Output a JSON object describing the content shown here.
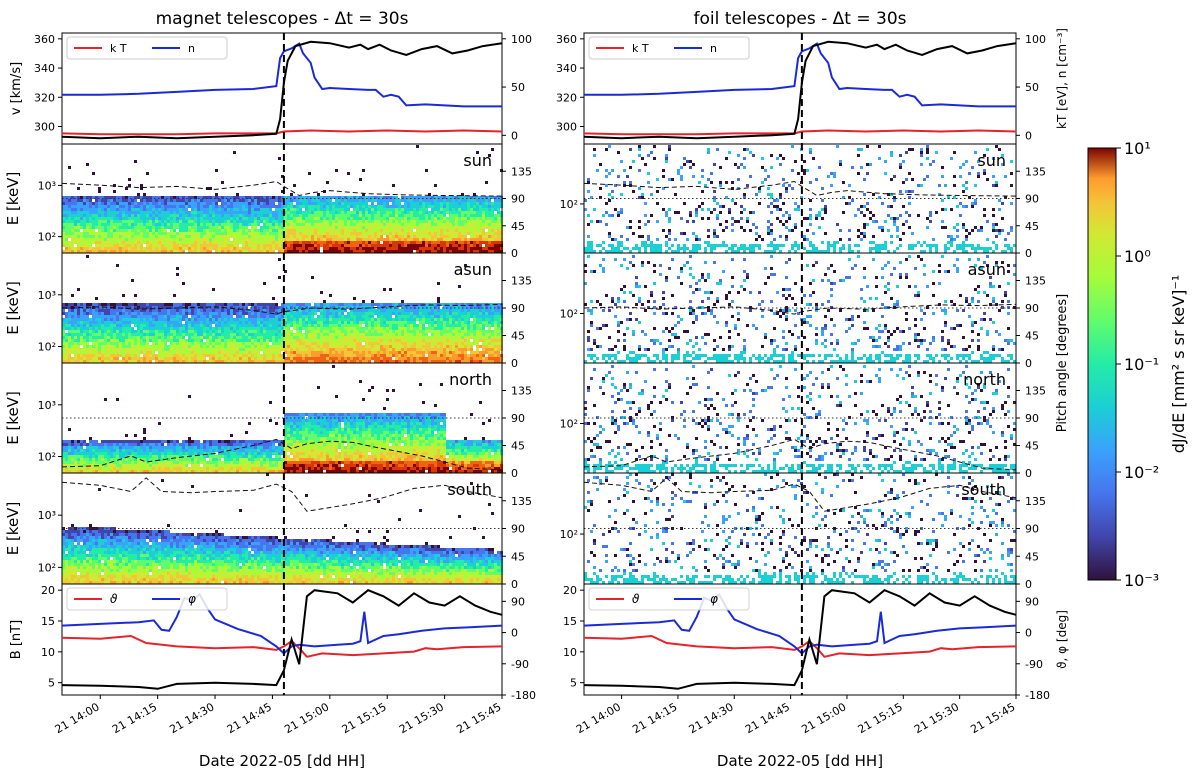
{
  "colors": {
    "kT": "#e6222a",
    "n": "#1a2ad9",
    "v": "#000000",
    "theta": "#e6222a",
    "phi": "#1a2ad9",
    "B": "#000000"
  },
  "chart_data": {
    "type": "heatmap",
    "columns": [
      {
        "title": "magnet telescopes  -  Δt = 30s",
        "telescope": "magnet",
        "xlabel": "Date 2022-05 [dd HH]"
      },
      {
        "title": "foil telescopes  -  Δt = 30s",
        "telescope": "foil",
        "xlabel": "Date 2022-05 [dd HH]"
      }
    ],
    "time_range_min": [
      -10,
      105
    ],
    "event_time_min": 48,
    "x_ticks": [
      "21 14:00",
      "21 14:15",
      "21 14:30",
      "21 14:45",
      "21 15:00",
      "21 15:15",
      "21 15:30",
      "21 15:45"
    ],
    "x_tick_minutes": [
      0,
      15,
      30,
      45,
      60,
      75,
      90,
      105
    ],
    "plasma_panel": {
      "ylabel_left": "v [km/s]",
      "ylabel_right": "kT [eV], n [cm⁻³]",
      "left_ticks": [
        "300",
        "320",
        "340",
        "360"
      ],
      "left_tick_values": [
        300,
        320,
        340,
        360
      ],
      "left_range": [
        288,
        364
      ],
      "right_ticks": [
        "0",
        "50",
        "100"
      ],
      "right_tick_values": [
        0,
        50,
        100
      ],
      "right_range": [
        -9,
        106
      ],
      "legend": [
        "k T",
        "n"
      ],
      "series_v_kms": [
        [
          -10,
          293
        ],
        [
          0,
          292
        ],
        [
          10,
          293
        ],
        [
          20,
          292
        ],
        [
          30,
          293
        ],
        [
          40,
          294
        ],
        [
          46,
          295
        ],
        [
          47,
          305
        ],
        [
          48,
          330
        ],
        [
          49,
          345
        ],
        [
          51,
          355
        ],
        [
          55,
          358
        ],
        [
          60,
          357
        ],
        [
          65,
          354
        ],
        [
          68,
          356
        ],
        [
          70,
          353
        ],
        [
          73,
          356
        ],
        [
          76,
          352
        ],
        [
          80,
          349
        ],
        [
          84,
          353
        ],
        [
          88,
          355
        ],
        [
          92,
          350
        ],
        [
          96,
          352
        ],
        [
          100,
          355
        ],
        [
          105,
          357
        ]
      ],
      "series_n_cm3": [
        [
          -10,
          42
        ],
        [
          0,
          42
        ],
        [
          10,
          43
        ],
        [
          20,
          45
        ],
        [
          30,
          47
        ],
        [
          40,
          48
        ],
        [
          46,
          51
        ],
        [
          47,
          80
        ],
        [
          48,
          87
        ],
        [
          50,
          90
        ],
        [
          52,
          95
        ],
        [
          53,
          85
        ],
        [
          55,
          75
        ],
        [
          56,
          60
        ],
        [
          58,
          48
        ],
        [
          60,
          49
        ],
        [
          65,
          48
        ],
        [
          70,
          47
        ],
        [
          72,
          47
        ],
        [
          74,
          40
        ],
        [
          76,
          42
        ],
        [
          78,
          40
        ],
        [
          80,
          31
        ],
        [
          85,
          32
        ],
        [
          90,
          31
        ],
        [
          95,
          30
        ],
        [
          105,
          30
        ]
      ],
      "series_kT_eV": [
        [
          -10,
          2
        ],
        [
          0,
          1
        ],
        [
          10,
          1
        ],
        [
          20,
          1
        ],
        [
          30,
          2
        ],
        [
          40,
          2
        ],
        [
          46,
          2
        ],
        [
          48,
          4
        ],
        [
          55,
          5
        ],
        [
          65,
          4
        ],
        [
          75,
          5
        ],
        [
          85,
          4
        ],
        [
          95,
          5
        ],
        [
          105,
          4
        ]
      ]
    },
    "spectrogram_panels": [
      {
        "label": "sun",
        "ylabel": "E [keV]",
        "right_ticks": [
          "0",
          "45",
          "90",
          "135"
        ],
        "pitch_range_deg": [
          0,
          180
        ],
        "pitch_angle_deg": [
          [
            -10,
            115
          ],
          [
            0,
            112
          ],
          [
            10,
            108
          ],
          [
            20,
            110
          ],
          [
            30,
            105
          ],
          [
            40,
            112
          ],
          [
            46,
            118
          ],
          [
            48,
            110
          ],
          [
            52,
            95
          ],
          [
            56,
            100
          ],
          [
            60,
            103
          ],
          [
            70,
            98
          ],
          [
            80,
            96
          ],
          [
            90,
            95
          ],
          [
            105,
            94
          ]
        ]
      },
      {
        "label": "asun",
        "ylabel": "E [keV]",
        "right_ticks": [
          "0",
          "45",
          "90",
          "135"
        ],
        "pitch_range_deg": [
          0,
          180
        ],
        "pitch_angle_deg": [
          [
            -10,
            90
          ],
          [
            0,
            92
          ],
          [
            10,
            88
          ],
          [
            20,
            90
          ],
          [
            30,
            92
          ],
          [
            40,
            86
          ],
          [
            46,
            80
          ],
          [
            48,
            84
          ],
          [
            55,
            90
          ],
          [
            65,
            88
          ],
          [
            75,
            92
          ],
          [
            85,
            95
          ],
          [
            95,
            94
          ],
          [
            105,
            96
          ]
        ]
      },
      {
        "label": "north",
        "ylabel": "E [keV]",
        "right_ticks": [
          "0",
          "45",
          "90",
          "135"
        ],
        "pitch_range_deg": [
          0,
          180
        ],
        "pitch_angle_deg": [
          [
            -10,
            10
          ],
          [
            0,
            12
          ],
          [
            8,
            28
          ],
          [
            12,
            18
          ],
          [
            20,
            25
          ],
          [
            30,
            32
          ],
          [
            40,
            45
          ],
          [
            46,
            55
          ],
          [
            50,
            40
          ],
          [
            54,
            48
          ],
          [
            60,
            52
          ],
          [
            66,
            50
          ],
          [
            72,
            42
          ],
          [
            78,
            35
          ],
          [
            84,
            28
          ],
          [
            90,
            18
          ],
          [
            96,
            8
          ],
          [
            105,
            5
          ]
        ]
      },
      {
        "label": "south",
        "ylabel": "E [keV]",
        "right_ticks": [
          "0",
          "45",
          "90",
          "135"
        ],
        "pitch_range_deg": [
          0,
          180
        ],
        "pitch_angle_deg": [
          [
            -10,
            165
          ],
          [
            0,
            160
          ],
          [
            8,
            150
          ],
          [
            12,
            172
          ],
          [
            16,
            150
          ],
          [
            24,
            148
          ],
          [
            30,
            150
          ],
          [
            40,
            152
          ],
          [
            46,
            162
          ],
          [
            50,
            150
          ],
          [
            54,
            118
          ],
          [
            58,
            122
          ],
          [
            66,
            130
          ],
          [
            74,
            140
          ],
          [
            82,
            155
          ],
          [
            90,
            160
          ],
          [
            96,
            150
          ],
          [
            105,
            140
          ]
        ]
      }
    ],
    "energy_ticks_magnet": [
      "10²",
      "10³"
    ],
    "energy_ticks_foil": [
      "10²"
    ],
    "right_axis_label_spectra": "Pitch angle [degrees]",
    "field_panel": {
      "ylabel_left": "B [nT]",
      "ylabel_right": "ϑ, φ [deg]",
      "left_ticks": [
        "5",
        "10",
        "15",
        "20"
      ],
      "left_tick_values": [
        5,
        10,
        15,
        20
      ],
      "left_range": [
        3,
        21
      ],
      "right_ticks": [
        "-180",
        "-90",
        "0",
        "90"
      ],
      "right_tick_values": [
        -180,
        -90,
        0,
        90
      ],
      "right_range": [
        -180,
        140
      ],
      "legend": [
        "ϑ",
        "φ"
      ],
      "series_B_nT": [
        [
          -10,
          4.6
        ],
        [
          0,
          4.5
        ],
        [
          10,
          4.3
        ],
        [
          15,
          4.0
        ],
        [
          20,
          4.8
        ],
        [
          30,
          5.0
        ],
        [
          40,
          4.8
        ],
        [
          46,
          4.6
        ],
        [
          48,
          7
        ],
        [
          50,
          12
        ],
        [
          52,
          8
        ],
        [
          54,
          19
        ],
        [
          56,
          20
        ],
        [
          62,
          19.5
        ],
        [
          66,
          18
        ],
        [
          70,
          20
        ],
        [
          74,
          19
        ],
        [
          78,
          17.5
        ],
        [
          82,
          19.5
        ],
        [
          86,
          18
        ],
        [
          90,
          17.5
        ],
        [
          94,
          19
        ],
        [
          98,
          17.5
        ],
        [
          102,
          16.5
        ],
        [
          105,
          16
        ]
      ],
      "series_theta_deg": [
        [
          -10,
          -15
        ],
        [
          0,
          -18
        ],
        [
          8,
          -10
        ],
        [
          12,
          -30
        ],
        [
          20,
          -40
        ],
        [
          30,
          -45
        ],
        [
          40,
          -42
        ],
        [
          46,
          -50
        ],
        [
          48,
          -40
        ],
        [
          50,
          -25
        ],
        [
          52,
          -45
        ],
        [
          54,
          -70
        ],
        [
          58,
          -60
        ],
        [
          66,
          -65
        ],
        [
          74,
          -60
        ],
        [
          82,
          -55
        ],
        [
          85,
          -45
        ],
        [
          88,
          -48
        ],
        [
          95,
          -42
        ],
        [
          105,
          -40
        ]
      ],
      "series_phi_deg": [
        [
          -10,
          20
        ],
        [
          0,
          25
        ],
        [
          10,
          30
        ],
        [
          14,
          35
        ],
        [
          16,
          8
        ],
        [
          18,
          5
        ],
        [
          20,
          45
        ],
        [
          22,
          100
        ],
        [
          24,
          92
        ],
        [
          26,
          110
        ],
        [
          28,
          70
        ],
        [
          30,
          38
        ],
        [
          36,
          10
        ],
        [
          42,
          -10
        ],
        [
          46,
          -40
        ],
        [
          48,
          -60
        ],
        [
          50,
          -40
        ],
        [
          52,
          -35
        ],
        [
          56,
          -40
        ],
        [
          62,
          -35
        ],
        [
          66,
          -32
        ],
        [
          68,
          -25
        ],
        [
          69,
          60
        ],
        [
          70,
          -30
        ],
        [
          72,
          -20
        ],
        [
          74,
          -10
        ],
        [
          78,
          -5
        ],
        [
          84,
          5
        ],
        [
          90,
          12
        ],
        [
          96,
          15
        ],
        [
          105,
          20
        ]
      ]
    },
    "colorbar": {
      "label": "dJ/dE [mm² s sr keV]⁻¹",
      "scale": "log",
      "ticks": [
        "10¹",
        "10⁰",
        "10⁻¹",
        "10⁻²",
        "10⁻³"
      ],
      "range": [
        0.001,
        10
      ]
    }
  }
}
